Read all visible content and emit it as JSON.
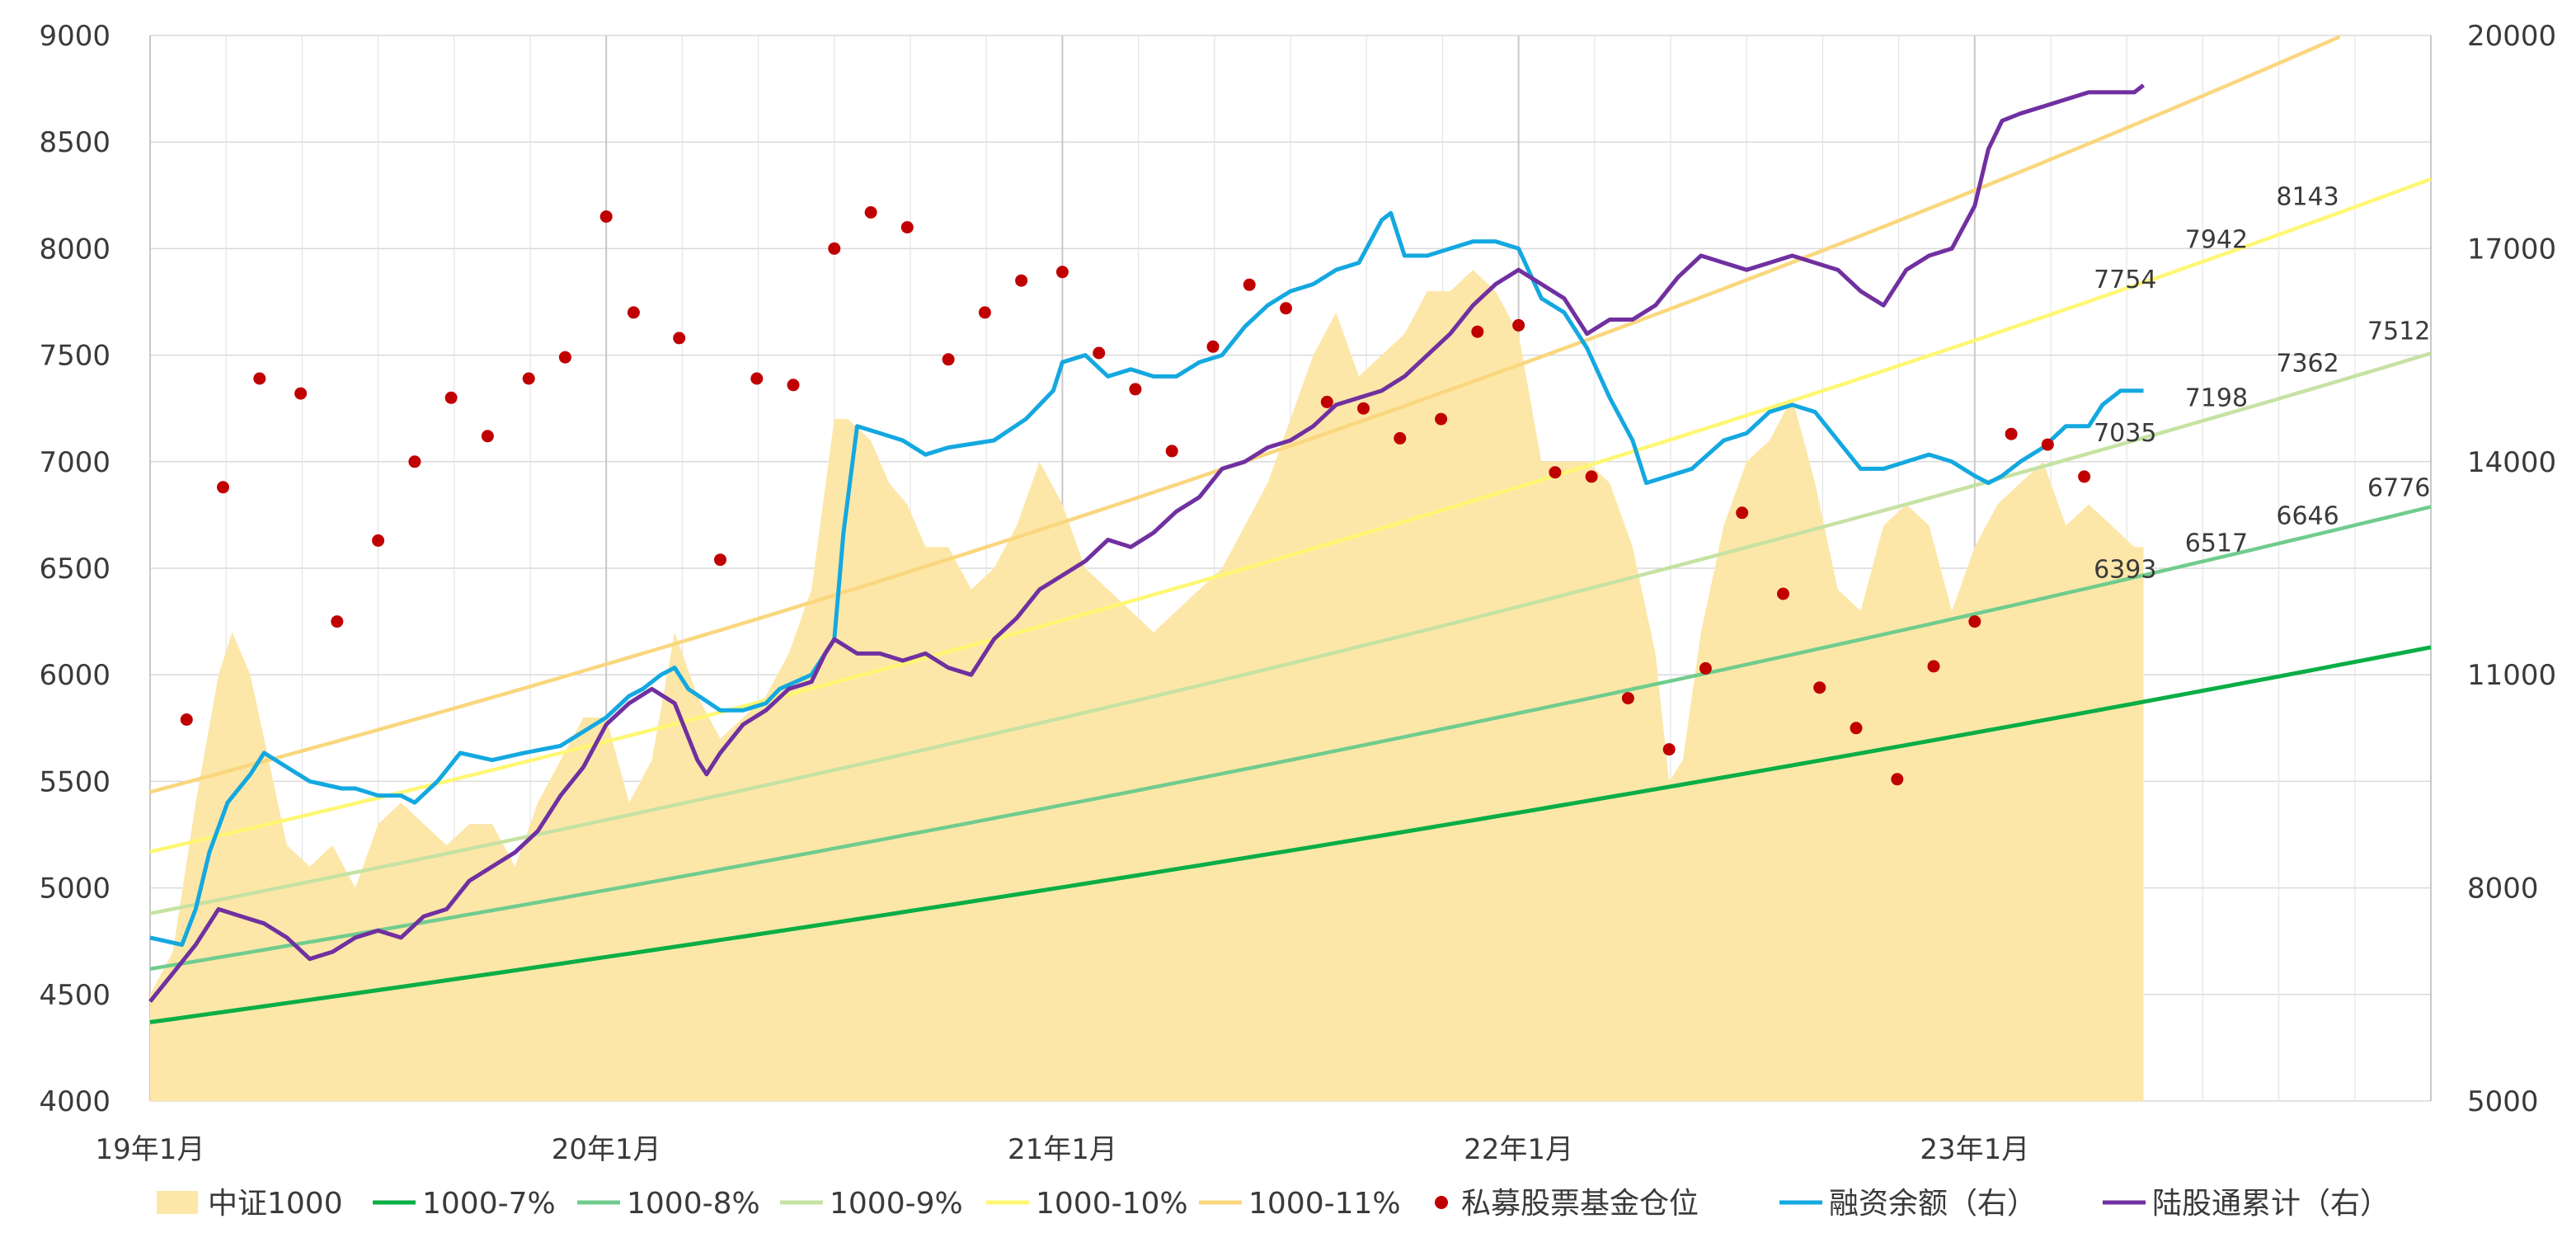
{
  "chart_data": {
    "type": "line",
    "title": "",
    "x_ticks": [
      "19年1月",
      "20年1月",
      "21年1月",
      "22年1月",
      "23年1月"
    ],
    "x_range": [
      2019.0,
      2024.0
    ],
    "y_left": {
      "min": 4000,
      "max": 9000,
      "ticks": [
        "4000",
        "4500",
        "5000",
        "5500",
        "6000",
        "6500",
        "7000",
        "7500",
        "8000",
        "8500",
        "9000"
      ]
    },
    "y_right": {
      "min": 5000,
      "max": 20000,
      "ticks": [
        "5000",
        "8000",
        "11000",
        "14000",
        "17000",
        "20000"
      ]
    },
    "grid": true,
    "legend_position": "bottom",
    "colors": {
      "area": "#FDE7A8",
      "g7": "#0AAE45",
      "g8": "#70CC8E",
      "g9": "#C6E2A3",
      "g10": "#FFF773",
      "g11": "#FAD77E",
      "dots": "#C00000",
      "margin": "#14A8E0",
      "hk": "#7030A0",
      "grid": "#DADADA"
    },
    "legend": [
      {
        "key": "area",
        "label": "中证1000",
        "kind": "area"
      },
      {
        "key": "g7",
        "label": "1000-7%",
        "kind": "line"
      },
      {
        "key": "g8",
        "label": "1000-8%",
        "kind": "line"
      },
      {
        "key": "g9",
        "label": "1000-9%",
        "kind": "line"
      },
      {
        "key": "g10",
        "label": "1000-10%",
        "kind": "line"
      },
      {
        "key": "g11",
        "label": "1000-11%",
        "kind": "line"
      },
      {
        "key": "dots",
        "label": "私募股票基金仓位",
        "kind": "dot"
      },
      {
        "key": "margin",
        "label": "融资余额（右）",
        "kind": "line"
      },
      {
        "key": "hk",
        "label": "陆股通累计（右）",
        "kind": "line"
      }
    ],
    "growth_lines": [
      {
        "key": "g7",
        "rate": 0.07,
        "start": 4370,
        "end_x": 2024.0
      },
      {
        "key": "g8",
        "rate": 0.08,
        "start": 4620,
        "end_x": 2024.0
      },
      {
        "key": "g9",
        "rate": 0.09,
        "start": 4880,
        "end_x": 2024.0
      },
      {
        "key": "g10",
        "rate": 0.1,
        "start": 5170,
        "end_x": 2024.0
      },
      {
        "key": "g11",
        "rate": 0.11,
        "start": 5450,
        "end_x": 2024.0
      }
    ],
    "line_labels": [
      {
        "text": "6393",
        "x": 2023.25,
        "y": 6393,
        "line": "g8"
      },
      {
        "text": "6517",
        "x": 2023.45,
        "y": 6517,
        "line": "g8"
      },
      {
        "text": "6646",
        "x": 2023.65,
        "y": 6646,
        "line": "g8"
      },
      {
        "text": "6776",
        "x": 2023.85,
        "y": 6776,
        "line": "g8"
      },
      {
        "text": "7035",
        "x": 2023.25,
        "y": 7035,
        "line": "g9"
      },
      {
        "text": "7198",
        "x": 2023.45,
        "y": 7198,
        "line": "g9"
      },
      {
        "text": "7362",
        "x": 2023.65,
        "y": 7362,
        "line": "g9"
      },
      {
        "text": "7512",
        "x": 2023.85,
        "y": 7512,
        "line": "g9"
      },
      {
        "text": "7754",
        "x": 2023.25,
        "y": 7754,
        "line": "g10"
      },
      {
        "text": "7942",
        "x": 2023.45,
        "y": 7942,
        "line": "g10"
      },
      {
        "text": "8143",
        "x": 2023.65,
        "y": 8143,
        "line": "g10"
      }
    ],
    "index_area": {
      "x": [
        2019.0,
        2019.05,
        2019.1,
        2019.15,
        2019.18,
        2019.22,
        2019.27,
        2019.3,
        2019.35,
        2019.4,
        2019.45,
        2019.5,
        2019.55,
        2019.6,
        2019.65,
        2019.7,
        2019.75,
        2019.8,
        2019.85,
        2019.9,
        2019.95,
        2020.0,
        2020.05,
        2020.1,
        2020.15,
        2020.2,
        2020.25,
        2020.3,
        2020.35,
        2020.4,
        2020.45,
        2020.5,
        2020.53,
        2020.58,
        2020.62,
        2020.66,
        2020.7,
        2020.75,
        2020.8,
        2020.85,
        2020.9,
        2020.95,
        2021.0,
        2021.05,
        2021.1,
        2021.15,
        2021.2,
        2021.25,
        2021.3,
        2021.35,
        2021.4,
        2021.45,
        2021.5,
        2021.55,
        2021.6,
        2021.65,
        2021.7,
        2021.75,
        2021.8,
        2021.85,
        2021.9,
        2021.95,
        2022.0,
        2022.05,
        2022.1,
        2022.15,
        2022.2,
        2022.25,
        2022.3,
        2022.33,
        2022.36,
        2022.4,
        2022.45,
        2022.5,
        2022.55,
        2022.6,
        2022.65,
        2022.7,
        2022.75,
        2022.8,
        2022.85,
        2022.9,
        2022.95,
        2023.0,
        2023.05,
        2023.1,
        2023.15,
        2023.2,
        2023.25,
        2023.3,
        2023.35,
        2023.37
      ],
      "y": [
        4500,
        4700,
        5400,
        6000,
        6200,
        6000,
        5500,
        5200,
        5100,
        5200,
        5000,
        5300,
        5400,
        5300,
        5200,
        5300,
        5300,
        5100,
        5400,
        5600,
        5800,
        5800,
        5400,
        5600,
        6200,
        5900,
        5700,
        5800,
        5900,
        6100,
        6400,
        7200,
        7200,
        7100,
        6900,
        6800,
        6600,
        6600,
        6400,
        6500,
        6700,
        7000,
        6800,
        6500,
        6400,
        6300,
        6200,
        6300,
        6400,
        6500,
        6700,
        6900,
        7200,
        7500,
        7700,
        7400,
        7500,
        7600,
        7800,
        7800,
        7900,
        7800,
        7600,
        7000,
        7000,
        7000,
        6900,
        6600,
        6100,
        5500,
        5600,
        6200,
        6700,
        7000,
        7100,
        7300,
        6900,
        6400,
        6300,
        6700,
        6800,
        6700,
        6300,
        6600,
        6800,
        6900,
        7000,
        6700,
        6800,
        6700,
        6600,
        6600
      ]
    },
    "margin_balance_right": {
      "x": [
        2019.0,
        2019.07,
        2019.1,
        2019.13,
        2019.17,
        2019.22,
        2019.25,
        2019.3,
        2019.35,
        2019.42,
        2019.45,
        2019.5,
        2019.55,
        2019.58,
        2019.63,
        2019.68,
        2019.75,
        2019.82,
        2019.9,
        2019.95,
        2020.0,
        2020.05,
        2020.08,
        2020.12,
        2020.15,
        2020.18,
        2020.25,
        2020.3,
        2020.35,
        2020.38,
        2020.45,
        2020.5,
        2020.52,
        2020.55,
        2020.6,
        2020.65,
        2020.7,
        2020.75,
        2020.85,
        2020.92,
        2020.98,
        2021.0,
        2021.05,
        2021.1,
        2021.15,
        2021.2,
        2021.25,
        2021.3,
        2021.35,
        2021.4,
        2021.45,
        2021.5,
        2021.55,
        2021.6,
        2021.65,
        2021.7,
        2021.72,
        2021.75,
        2021.8,
        2021.85,
        2021.9,
        2021.95,
        2022.0,
        2022.05,
        2022.1,
        2022.15,
        2022.2,
        2022.25,
        2022.28,
        2022.33,
        2022.38,
        2022.45,
        2022.5,
        2022.55,
        2022.6,
        2022.65,
        2022.7,
        2022.75,
        2022.8,
        2022.85,
        2022.9,
        2022.95,
        2023.0,
        2023.03,
        2023.06,
        2023.1,
        2023.15,
        2023.2,
        2023.25,
        2023.28,
        2023.32,
        2023.37
      ],
      "y": [
        7300,
        7200,
        7700,
        8500,
        9200,
        9600,
        9900,
        9700,
        9500,
        9400,
        9400,
        9300,
        9300,
        9200,
        9500,
        9900,
        9800,
        9900,
        10000,
        10200,
        10400,
        10700,
        10800,
        11000,
        11100,
        10800,
        10500,
        10500,
        10600,
        10800,
        11000,
        11500,
        13000,
        14500,
        14400,
        14300,
        14100,
        14200,
        14300,
        14600,
        15000,
        15400,
        15500,
        15200,
        15300,
        15200,
        15200,
        15400,
        15500,
        15900,
        16200,
        16400,
        16500,
        16700,
        16800,
        17400,
        17500,
        16900,
        16900,
        17000,
        17100,
        17100,
        17000,
        16300,
        16100,
        15600,
        14900,
        14300,
        13700,
        13800,
        13900,
        14300,
        14400,
        14700,
        14800,
        14700,
        14300,
        13900,
        13900,
        14000,
        14100,
        14000,
        13800,
        13700,
        13800,
        14000,
        14200,
        14500,
        14500,
        14800,
        15000,
        15000
      ]
    },
    "northbound_right": {
      "x": [
        2019.0,
        2019.05,
        2019.1,
        2019.15,
        2019.2,
        2019.25,
        2019.3,
        2019.35,
        2019.4,
        2019.45,
        2019.5,
        2019.55,
        2019.6,
        2019.65,
        2019.7,
        2019.75,
        2019.8,
        2019.85,
        2019.9,
        2019.95,
        2020.0,
        2020.05,
        2020.1,
        2020.15,
        2020.2,
        2020.22,
        2020.25,
        2020.3,
        2020.35,
        2020.4,
        2020.45,
        2020.48,
        2020.5,
        2020.55,
        2020.6,
        2020.65,
        2020.7,
        2020.75,
        2020.8,
        2020.85,
        2020.9,
        2020.95,
        2021.0,
        2021.05,
        2021.1,
        2021.15,
        2021.2,
        2021.25,
        2021.3,
        2021.35,
        2021.4,
        2021.45,
        2021.5,
        2021.55,
        2021.6,
        2021.65,
        2021.7,
        2021.75,
        2021.8,
        2021.85,
        2021.9,
        2021.95,
        2022.0,
        2022.05,
        2022.1,
        2022.15,
        2022.2,
        2022.25,
        2022.3,
        2022.35,
        2022.4,
        2022.45,
        2022.5,
        2022.55,
        2022.6,
        2022.65,
        2022.7,
        2022.75,
        2022.8,
        2022.85,
        2022.9,
        2022.95,
        2023.0,
        2023.03,
        2023.06,
        2023.1,
        2023.15,
        2023.2,
        2023.25,
        2023.3,
        2023.35,
        2023.37
      ],
      "y": [
        6400,
        6800,
        7200,
        7700,
        7600,
        7500,
        7300,
        7000,
        7100,
        7300,
        7400,
        7300,
        7600,
        7700,
        8100,
        8300,
        8500,
        8800,
        9300,
        9700,
        10300,
        10600,
        10800,
        10600,
        9800,
        9600,
        9900,
        10300,
        10500,
        10800,
        10900,
        11300,
        11500,
        11300,
        11300,
        11200,
        11300,
        11100,
        11000,
        11500,
        11800,
        12200,
        12400,
        12600,
        12900,
        12800,
        13000,
        13300,
        13500,
        13900,
        14000,
        14200,
        14300,
        14500,
        14800,
        14900,
        15000,
        15200,
        15500,
        15800,
        16200,
        16500,
        16700,
        16500,
        16300,
        15800,
        16000,
        16000,
        16200,
        16600,
        16900,
        16800,
        16700,
        16800,
        16900,
        16800,
        16700,
        16400,
        16200,
        16700,
        16900,
        17000,
        17600,
        18400,
        18800,
        18900,
        19000,
        19100,
        19200,
        19200,
        19200,
        19300
      ]
    },
    "private_fund_positions": {
      "x": [
        2019.08,
        2019.16,
        2019.24,
        2019.33,
        2019.41,
        2019.5,
        2019.58,
        2019.66,
        2019.74,
        2019.83,
        2019.91,
        2020.0,
        2020.06,
        2020.16,
        2020.25,
        2020.33,
        2020.41,
        2020.5,
        2020.58,
        2020.66,
        2020.75,
        2020.83,
        2020.91,
        2021.0,
        2021.08,
        2021.16,
        2021.24,
        2021.33,
        2021.41,
        2021.49,
        2021.58,
        2021.66,
        2021.74,
        2021.83,
        2021.91,
        2022.0,
        2022.08,
        2022.16,
        2022.24,
        2022.33,
        2022.41,
        2022.49,
        2022.58,
        2022.66,
        2022.74,
        2022.83,
        2022.91,
        2023.0,
        2023.08,
        2023.16,
        2023.24
      ],
      "y": [
        5790,
        6880,
        7390,
        7320,
        6250,
        6630,
        7000,
        7300,
        7120,
        7390,
        7490,
        8150,
        7700,
        7580,
        6540,
        7390,
        7360,
        8000,
        8170,
        8100,
        7480,
        7700,
        7850,
        7890,
        7510,
        7340,
        7050,
        7540,
        7830,
        7720,
        7280,
        7250,
        7110,
        7200,
        7610,
        7640,
        6950,
        6930,
        5890,
        5650,
        6030,
        6760,
        6380,
        5940,
        5750,
        5510,
        6040,
        6250,
        7130,
        7080,
        6930
      ]
    }
  }
}
